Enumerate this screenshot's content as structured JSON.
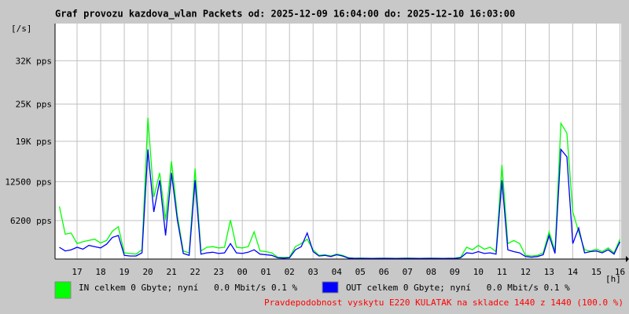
{
  "chart_data": {
    "type": "line",
    "title": "Graf provozu kazdova_wlan Packets od: 2025-12-09 16:04:00 do: 2025-12-10 16:03:00",
    "y_label": "[/s]",
    "x_label": "[h]",
    "annotation": "Pravdepodobnost vyskytu E220 KULATAK na skladce 1440 z 1440 (100.0 %)",
    "grid": true,
    "xlim": [
      16.067,
      40.05
    ],
    "xticks": [
      17,
      18,
      19,
      20,
      21,
      22,
      23,
      {
        "value": 24,
        "label": "00"
      },
      {
        "value": 25,
        "label": "01"
      },
      {
        "value": 26,
        "label": "02"
      },
      {
        "value": 27,
        "label": "03"
      },
      {
        "value": 28,
        "label": "04"
      },
      {
        "value": 29,
        "label": "05"
      },
      {
        "value": 30,
        "label": "06"
      },
      {
        "value": 31,
        "label": "07"
      },
      {
        "value": 32,
        "label": "08"
      },
      {
        "value": 33,
        "label": "09"
      },
      {
        "value": 34,
        "label": "10"
      },
      {
        "value": 35,
        "label": "11"
      },
      {
        "value": 36,
        "label": "12"
      },
      {
        "value": 37,
        "label": "13"
      },
      {
        "value": 38,
        "label": "14"
      },
      {
        "value": 39,
        "label": "15"
      },
      {
        "value": 40,
        "label": "16"
      }
    ],
    "ylim": [
      0,
      38000
    ],
    "yticks": [
      {
        "value": 6200,
        "label": "6200 pps"
      },
      {
        "value": 12500,
        "label": "12500 pps"
      },
      {
        "value": 19000,
        "label": "19K pps"
      },
      {
        "value": 25000,
        "label": "25K pps"
      },
      {
        "value": 32000,
        "label": "32K pps"
      }
    ],
    "x": [
      16.25,
      16.5,
      16.75,
      17,
      17.25,
      17.5,
      17.75,
      18,
      18.25,
      18.5,
      18.75,
      19,
      19.25,
      19.5,
      19.75,
      20,
      20.25,
      20.5,
      20.75,
      21,
      21.25,
      21.5,
      21.75,
      22,
      22.25,
      22.5,
      22.75,
      23,
      23.25,
      23.5,
      23.75,
      24,
      24.25,
      24.5,
      24.75,
      25,
      25.25,
      25.5,
      25.75,
      26,
      26.25,
      26.5,
      26.75,
      27,
      27.25,
      27.5,
      27.75,
      28,
      28.25,
      28.5,
      28.75,
      29,
      29.25,
      29.5,
      29.75,
      30,
      30.25,
      30.5,
      30.75,
      31,
      31.25,
      31.5,
      31.75,
      32,
      32.25,
      32.5,
      32.75,
      33,
      33.25,
      33.5,
      33.75,
      34,
      34.25,
      34.5,
      34.75,
      35,
      35.25,
      35.5,
      35.75,
      36,
      36.25,
      36.5,
      36.75,
      37,
      37.25,
      37.5,
      37.75,
      38,
      38.25,
      38.5,
      38.75,
      39,
      39.25,
      39.5,
      39.75,
      40
    ],
    "series": [
      {
        "name": "IN celkem 0 Gbyte; nyní   0.0 Mbit/s 0.1 %",
        "color": "#00ff00",
        "values": [
          8500,
          4000,
          4200,
          2500,
          2800,
          3000,
          3200,
          2600,
          3000,
          4500,
          5200,
          1000,
          900,
          800,
          1500,
          22800,
          10000,
          13900,
          6300,
          15800,
          7000,
          1300,
          1000,
          14600,
          1300,
          1900,
          2000,
          1800,
          1900,
          6300,
          1900,
          1800,
          2000,
          4400,
          1300,
          1200,
          1000,
          300,
          250,
          300,
          2000,
          2500,
          3200,
          1500,
          600,
          700,
          500,
          800,
          600,
          200,
          130,
          150,
          130,
          120,
          130,
          140,
          130,
          120,
          130,
          150,
          130,
          120,
          130,
          140,
          130,
          120,
          130,
          140,
          300,
          1900,
          1500,
          2200,
          1600,
          1900,
          1200,
          15200,
          2500,
          3000,
          2500,
          600,
          500,
          600,
          1000,
          4400,
          1300,
          21900,
          20300,
          7600,
          4400,
          1500,
          1300,
          1600,
          1200,
          1800,
          1000,
          3200
        ]
      },
      {
        "name": "OUT celkem 0 Gbyte; nyní   0.0 Mbit/s 0.1 %",
        "color": "#0000ff",
        "values": [
          1900,
          1300,
          1500,
          1900,
          1600,
          2200,
          2000,
          1800,
          2400,
          3500,
          3800,
          600,
          500,
          500,
          1000,
          17700,
          7600,
          12700,
          3800,
          13900,
          6300,
          900,
          600,
          12700,
          800,
          1000,
          1100,
          900,
          1000,
          2500,
          1000,
          900,
          1100,
          1500,
          800,
          700,
          600,
          200,
          150,
          200,
          1500,
          2000,
          4200,
          1200,
          500,
          600,
          400,
          700,
          500,
          150,
          100,
          110,
          100,
          90,
          100,
          110,
          100,
          90,
          100,
          110,
          100,
          90,
          100,
          110,
          100,
          90,
          100,
          110,
          200,
          1000,
          900,
          1200,
          900,
          1000,
          800,
          12700,
          1500,
          1200,
          1000,
          400,
          300,
          400,
          700,
          3800,
          900,
          17700,
          16500,
          2500,
          5000,
          1000,
          1200,
          1300,
          1000,
          1500,
          800,
          2800
        ]
      }
    ]
  }
}
